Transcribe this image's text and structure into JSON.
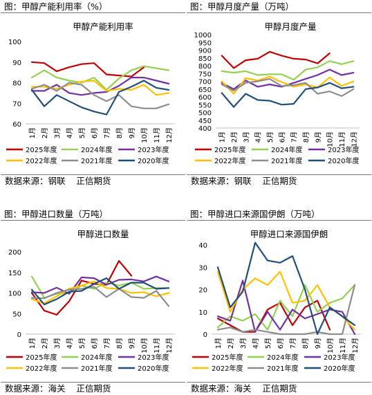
{
  "panels": [
    {
      "caption": "图：甲醇产能利用率（%）",
      "source": "数据来源：钢联    正信期货"
    },
    {
      "caption": "图：甲醇月度产量（万吨）",
      "source": "数据来源：钢联    正信期货"
    },
    {
      "caption": "图：甲醇进口数量（万吨）",
      "source": "数据来源：海关    正信期货"
    },
    {
      "caption": "图：甲醇进口来源国伊朗（万吨）",
      "source": "数据来源：海关    正信期货"
    }
  ],
  "colors": {
    "2025年度": "#c00000",
    "2024年度": "#92d050",
    "2023年度": "#7030a0",
    "2022年度": "#ffc000",
    "2021年度": "#8c8c8c",
    "2020年度": "#1f4e79"
  },
  "chart_data": [
    {
      "type": "line",
      "title": "甲醇产能利用率",
      "categories": [
        "1月",
        "2月",
        "3月",
        "4月",
        "5月",
        "6月",
        "7月",
        "8月",
        "9月",
        "10月",
        "11月",
        "12月"
      ],
      "ylim": [
        60,
        100
      ],
      "yticks": [
        60,
        70,
        80,
        90,
        100
      ],
      "series": [
        {
          "name": "2025年度",
          "values": [
            90,
            89.5,
            85.5,
            87.5,
            89,
            89.5,
            84,
            83.5,
            83,
            87.5,
            null,
            null
          ]
        },
        {
          "name": "2024年度",
          "values": [
            82.5,
            86,
            82.5,
            81,
            80,
            82.5,
            76.5,
            82,
            86,
            88,
            87,
            86
          ]
        },
        {
          "name": "2023年度",
          "values": [
            76,
            76,
            79,
            75,
            74,
            75,
            75.5,
            78.5,
            82.5,
            82.5,
            81,
            79.5
          ]
        },
        {
          "name": "2022年度",
          "values": [
            78,
            78,
            77,
            79,
            80.5,
            81,
            76,
            77,
            76.5,
            79,
            74,
            75
          ]
        },
        {
          "name": "2021年度",
          "values": [
            77,
            79,
            76,
            80,
            79,
            74,
            71,
            74,
            68.5,
            67.5,
            67.5,
            69.5
          ]
        },
        {
          "name": "2020年度",
          "values": [
            76.5,
            68.5,
            74,
            71,
            68,
            66,
            64.5,
            75.5,
            78,
            81,
            77.5,
            76.5
          ]
        }
      ],
      "legend_position": "bottom"
    },
    {
      "type": "line",
      "title": "甲醇月度产量",
      "categories": [
        "1月",
        "2月",
        "3月",
        "4月",
        "5月",
        "6月",
        "7月",
        "8月",
        "9月",
        "10月",
        "11月",
        "12月"
      ],
      "ylim": [
        400,
        1000
      ],
      "yticks": [
        400,
        450,
        500,
        550,
        600,
        650,
        700,
        750,
        800,
        850,
        900,
        950,
        1000
      ],
      "series": [
        {
          "name": "2025年度",
          "values": [
            865,
            785,
            835,
            845,
            890,
            865,
            845,
            840,
            815,
            880,
            null,
            null
          ]
        },
        {
          "name": "2024年度",
          "values": [
            765,
            755,
            765,
            740,
            745,
            745,
            710,
            775,
            790,
            830,
            810,
            830
          ]
        },
        {
          "name": "2023年度",
          "values": [
            690,
            650,
            705,
            665,
            680,
            665,
            690,
            715,
            740,
            775,
            740,
            755
          ]
        },
        {
          "name": "2022年度",
          "values": [
            700,
            620,
            720,
            705,
            730,
            695,
            665,
            680,
            660,
            725,
            670,
            700
          ]
        },
        {
          "name": "2021年度",
          "values": [
            680,
            640,
            690,
            700,
            715,
            670,
            675,
            690,
            620,
            635,
            605,
            650
          ]
        },
        {
          "name": "2020年度",
          "values": [
            625,
            535,
            620,
            580,
            575,
            550,
            555,
            650,
            660,
            690,
            655,
            665
          ]
        }
      ],
      "legend_position": "bottom"
    },
    {
      "type": "line",
      "title": "甲醇进口数量",
      "categories": [
        "1月",
        "2月",
        "3月",
        "4月",
        "5月",
        "6月",
        "7月",
        "8月",
        "9月",
        "10月",
        "11月",
        "12月"
      ],
      "ylim": [
        0,
        200
      ],
      "yticks": [
        0,
        50,
        100,
        150,
        200
      ],
      "series": [
        {
          "name": "2025年度",
          "values": [
            100,
            57,
            47,
            80,
            130,
            122,
            120,
            178,
            142,
            null,
            null,
            null
          ]
        },
        {
          "name": "2024年度",
          "values": [
            140,
            88,
            98,
            100,
            118,
            110,
            125,
            118,
            125,
            110,
            112,
            112
          ]
        },
        {
          "name": "2023年度",
          "values": [
            102,
            100,
            113,
            98,
            138,
            136,
            120,
            132,
            133,
            128,
            140,
            128
          ]
        },
        {
          "name": "2022年度",
          "values": [
            85,
            75,
            92,
            110,
            118,
            128,
            112,
            110,
            100,
            102,
            92,
            100
          ]
        },
        {
          "name": "2021年度",
          "values": [
            88,
            87,
            100,
            108,
            110,
            115,
            90,
            110,
            90,
            88,
            105,
            68
          ]
        },
        {
          "name": "2020年度",
          "values": [
            108,
            72,
            85,
            103,
            105,
            122,
            136,
            110,
            125,
            125,
            110,
            112
          ]
        }
      ],
      "legend_position": "bottom"
    },
    {
      "type": "line",
      "title": "甲醇进口来源国伊朗",
      "categories": [
        "1月",
        "2月",
        "3月",
        "4月",
        "5月",
        "6月",
        "7月",
        "8月",
        "9月",
        "10月",
        "11月",
        "12月"
      ],
      "ylim": [
        0,
        40
      ],
      "yticks": [
        0,
        10,
        20,
        30,
        40
      ],
      "series": [
        {
          "name": "2025年度",
          "values": [
            7,
            4,
            1,
            1,
            11,
            14,
            4,
            12,
            15,
            2,
            null,
            null
          ]
        },
        {
          "name": "2024年度",
          "values": [
            3,
            8,
            6,
            9,
            2,
            15,
            8,
            22,
            10,
            14,
            16,
            22
          ]
        },
        {
          "name": "2023年度",
          "values": [
            8,
            6,
            24,
            1,
            10,
            2,
            11,
            7,
            9,
            11,
            10,
            0
          ]
        },
        {
          "name": "2022年度",
          "values": [
            28,
            10,
            20,
            25,
            22,
            28,
            14,
            15,
            22,
            12,
            8,
            2
          ]
        },
        {
          "name": "2021年度",
          "values": [
            2,
            3,
            1,
            2,
            1,
            0,
            0,
            0,
            1,
            0,
            0,
            22
          ]
        },
        {
          "name": "2020年度",
          "values": [
            30,
            12,
            19,
            41,
            33,
            32,
            35,
            20,
            0,
            12,
            8,
            4
          ]
        }
      ],
      "legend_position": "bottom"
    }
  ]
}
